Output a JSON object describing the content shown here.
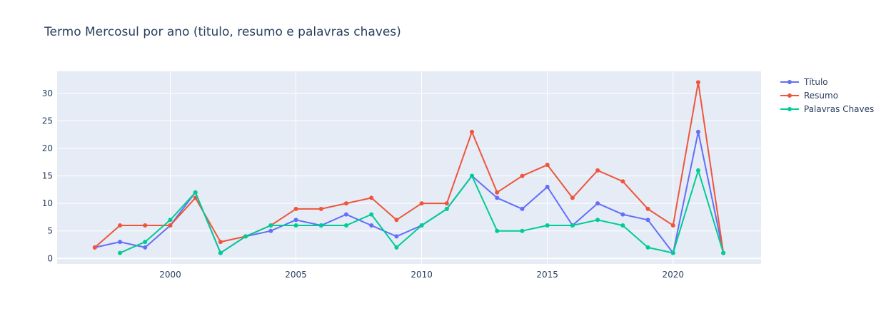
{
  "chart_data": {
    "type": "line",
    "title": "Termo Mercosul por ano (titulo, resumo e palavras chaves)",
    "xlabel": "",
    "ylabel": "",
    "xlim": [
      1995.5,
      2023.5
    ],
    "ylim": [
      -1,
      34
    ],
    "x_ticks": [
      2000,
      2005,
      2010,
      2015,
      2020
    ],
    "y_ticks": [
      0,
      5,
      10,
      15,
      20,
      25,
      30
    ],
    "grid": true,
    "legend_position": "top-right",
    "plot_background": "#e5ecf6",
    "series": [
      {
        "name": "Título",
        "color": "#636efa",
        "x": [
          1997,
          1998,
          1999,
          2000,
          2001,
          2002,
          2003,
          2004,
          2005,
          2006,
          2007,
          2008,
          2009,
          2010,
          2011,
          2012,
          2013,
          2014,
          2015,
          2016,
          2017,
          2018,
          2019,
          2020,
          2021,
          2022
        ],
        "y": [
          2,
          3,
          2,
          6,
          12,
          1,
          4,
          5,
          7,
          6,
          8,
          6,
          4,
          6,
          9,
          15,
          11,
          9,
          13,
          6,
          10,
          8,
          7,
          1,
          23,
          1
        ]
      },
      {
        "name": "Resumo",
        "color": "#ef553b",
        "x": [
          1997,
          1998,
          1999,
          2000,
          2001,
          2002,
          2003,
          2004,
          2005,
          2006,
          2007,
          2008,
          2009,
          2010,
          2011,
          2012,
          2013,
          2014,
          2015,
          2016,
          2017,
          2018,
          2019,
          2020,
          2021,
          2022
        ],
        "y": [
          2,
          6,
          6,
          6,
          11,
          3,
          4,
          6,
          9,
          9,
          10,
          11,
          7,
          10,
          10,
          23,
          12,
          15,
          17,
          11,
          16,
          14,
          9,
          6,
          32,
          1
        ]
      },
      {
        "name": "Palavras Chaves",
        "color": "#00cc96",
        "x": [
          1998,
          1999,
          2000,
          2001,
          2002,
          2003,
          2004,
          2005,
          2006,
          2007,
          2008,
          2009,
          2010,
          2011,
          2012,
          2013,
          2014,
          2015,
          2016,
          2017,
          2018,
          2019,
          2020,
          2021,
          2022
        ],
        "y": [
          1,
          3,
          7,
          12,
          1,
          4,
          6,
          6,
          6,
          6,
          8,
          2,
          6,
          9,
          15,
          5,
          5,
          6,
          6,
          7,
          6,
          2,
          1,
          16,
          1
        ]
      }
    ]
  }
}
